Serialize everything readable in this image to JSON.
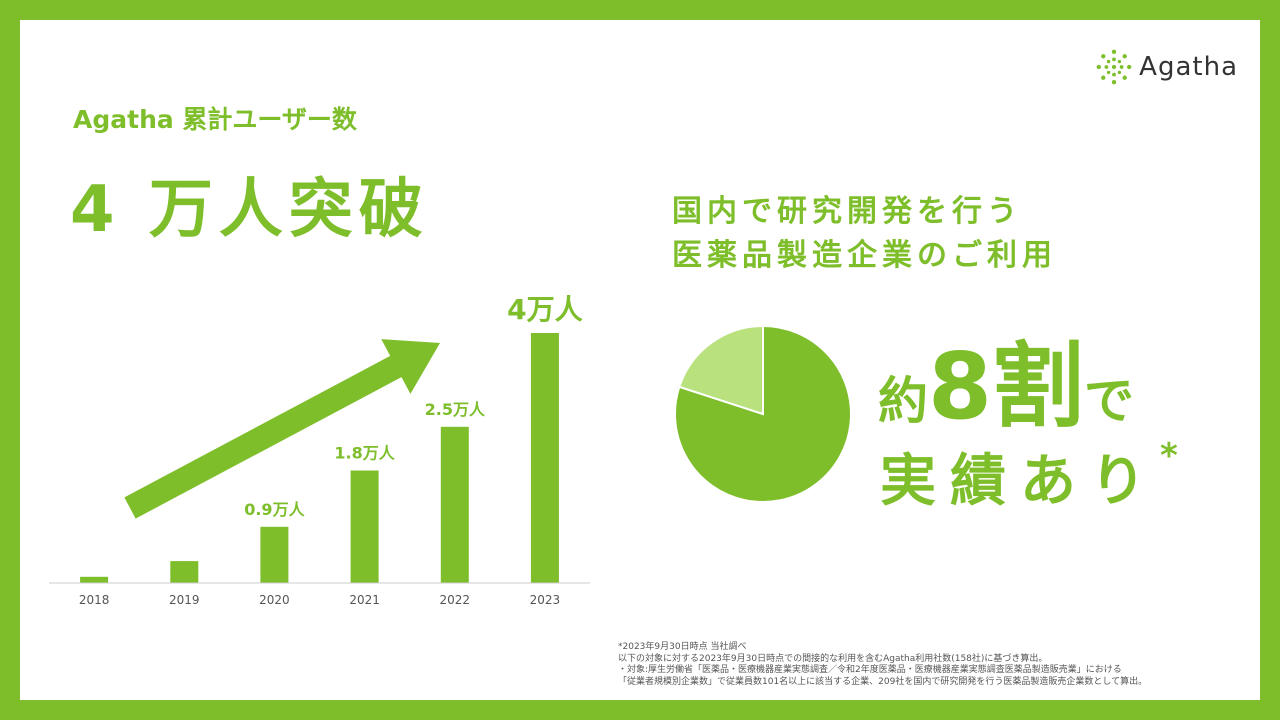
{
  "logo": {
    "text": "Agatha",
    "icon": "dotted-circle-logo-icon"
  },
  "header": {
    "subtitle": "Agatha 累計ユーザー数",
    "headline": "4 万人突破"
  },
  "chart_data": [
    {
      "type": "bar",
      "categories": [
        "2018",
        "2019",
        "2020",
        "2021",
        "2022",
        "2023"
      ],
      "values": [
        0.1,
        0.35,
        0.9,
        1.8,
        2.5,
        4
      ],
      "data_labels": [
        "",
        "",
        "0.9万人",
        "1.8万人",
        "2.5万人",
        "4万人"
      ],
      "unit": "万人",
      "ylim": [
        0,
        4
      ],
      "grid": false,
      "bar_color": "#7dbe2a",
      "arrow_color": "#7dbe2a"
    },
    {
      "type": "pie",
      "slices": [
        {
          "value": 80,
          "color": "#7dbe2a"
        },
        {
          "value": 20,
          "color": "#b9e27e"
        }
      ]
    }
  ],
  "right": {
    "heading_line1": "国内で研究開発を行う",
    "heading_line2": "医薬品製造企業のご利用",
    "big_prefix": "約",
    "big_number": "8割",
    "big_suffix": "で",
    "big_line2": "実績あり",
    "asterisk": "*"
  },
  "footnote": {
    "line1": "*2023年9月30日時点 当社調べ",
    "line2": "以下の対象に対する2023年9月30日時点での間接的な利用を含むAgatha利用社数(158社)に基づき算出。",
    "line3": "・対象:厚生労働省「医薬品・医療機器産業実態調査／令和2年度医薬品・医療機器産業実態調査医薬品製造販売業」における",
    "line4": "「従業者規模別企業数」で従業員数101名以上に該当する企業、209社を国内で研究開発を行う医薬品製造販売企業数として算出。"
  },
  "colors": {
    "accent": "#7dbe2a",
    "accent_light": "#b9e27e"
  }
}
